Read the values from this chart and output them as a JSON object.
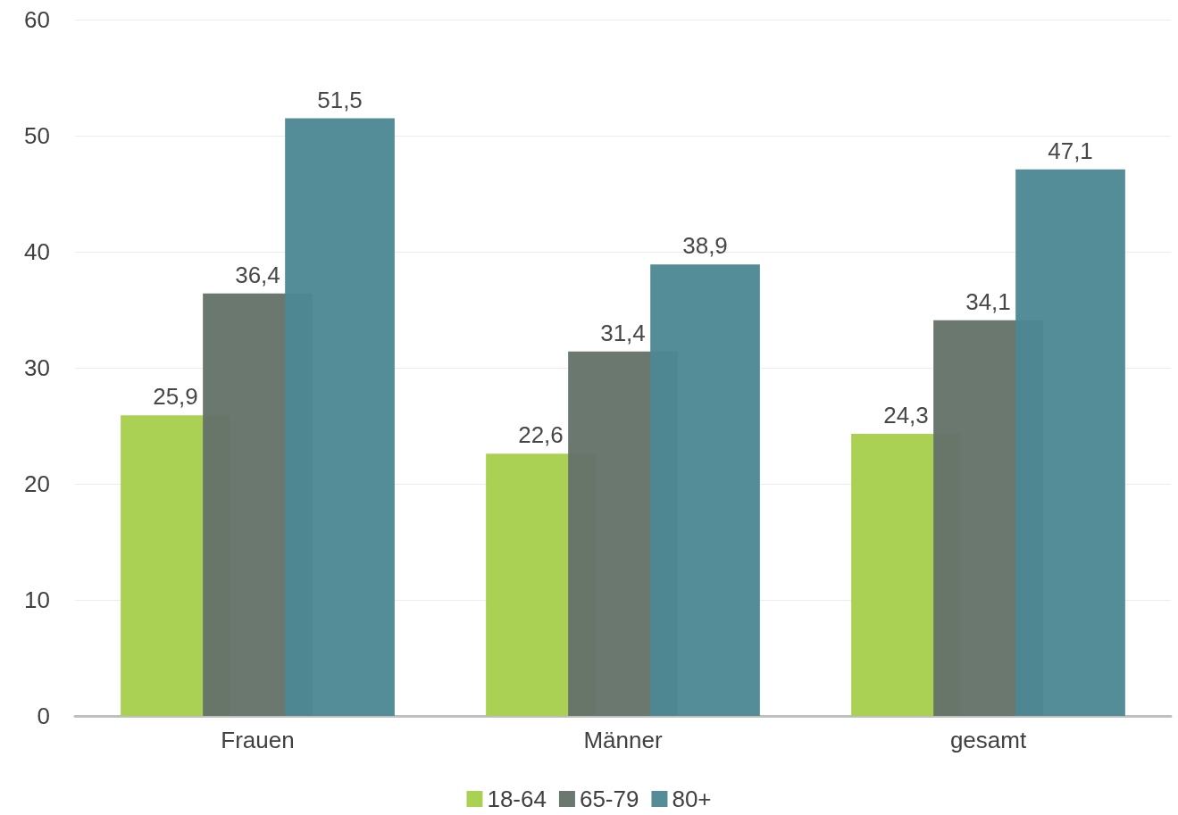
{
  "chart_data": {
    "type": "bar",
    "categories": [
      "Frauen",
      "Männer",
      "gesamt"
    ],
    "series": [
      {
        "name": "18-64",
        "color": "#a8cf4d",
        "values": [
          25.9,
          22.6,
          24.3
        ],
        "value_labels": [
          "25,9",
          "22,6",
          "24,3"
        ]
      },
      {
        "name": "65-79",
        "color": "#65736a",
        "values": [
          36.4,
          31.4,
          34.1
        ],
        "value_labels": [
          "36,4",
          "31,4",
          "34,1"
        ]
      },
      {
        "name": "80+",
        "color": "#4d8794",
        "values": [
          51.5,
          38.9,
          47.1
        ],
        "value_labels": [
          "51,5",
          "38,9",
          "47,1"
        ]
      }
    ],
    "ylim": [
      0,
      60
    ],
    "yticks": [
      0,
      10,
      20,
      30,
      40,
      50,
      60
    ],
    "grid": "y",
    "legend": "bottom"
  }
}
